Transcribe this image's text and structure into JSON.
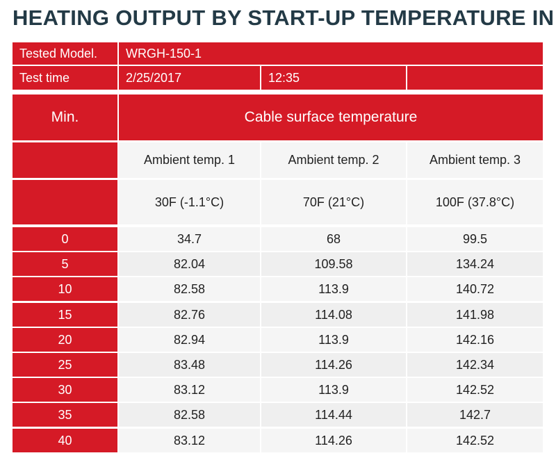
{
  "chart_data": {
    "type": "table",
    "title": "HEATING OUTPUT BY START-UP TEMPERATURE IN F",
    "info": {
      "model_label": "Tested Model.",
      "model_value": "WRGH-150-1",
      "time_label": "Test time",
      "date": "2/25/2017",
      "time": "12:35"
    },
    "header": {
      "min_label": "Min.",
      "group_label": "Cable surface temperature"
    },
    "columns": [
      {
        "name": "Ambient temp. 1",
        "temp": "30F (-1.1°C)"
      },
      {
        "name": "Ambient temp. 2",
        "temp": "70F (21°C)"
      },
      {
        "name": "Ambient temp. 3",
        "temp": "100F (37.8°C)"
      }
    ],
    "rows": [
      {
        "min": "0",
        "values": [
          "34.7",
          "68",
          "99.5"
        ]
      },
      {
        "min": "5",
        "values": [
          "82.04",
          "109.58",
          "134.24"
        ]
      },
      {
        "min": "10",
        "values": [
          "82.58",
          "113.9",
          "140.72"
        ]
      },
      {
        "min": "15",
        "values": [
          "82.76",
          "114.08",
          "141.98"
        ]
      },
      {
        "min": "20",
        "values": [
          "82.94",
          "113.9",
          "142.16"
        ]
      },
      {
        "min": "25",
        "values": [
          "83.48",
          "114.26",
          "142.34"
        ]
      },
      {
        "min": "30",
        "values": [
          "83.12",
          "113.9",
          "142.52"
        ]
      },
      {
        "min": "35",
        "values": [
          "82.58",
          "114.44",
          "142.7"
        ]
      },
      {
        "min": "40",
        "values": [
          "83.12",
          "114.26",
          "142.52"
        ]
      }
    ],
    "colors": {
      "header_red": "#d51a26",
      "title_navy": "#233a46",
      "cell_light": "#f5f5f5"
    }
  }
}
